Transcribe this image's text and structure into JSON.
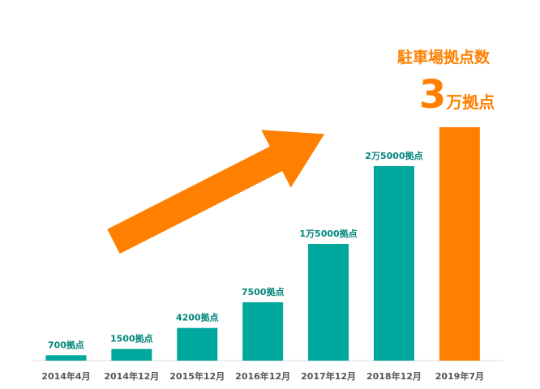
{
  "chart_data": {
    "type": "bar",
    "title": "駐車場拠点数",
    "categories": [
      "2014年4月",
      "2014年12月",
      "2015年12月",
      "2016年12月",
      "2017年12月",
      "2018年12月",
      "2019年7月"
    ],
    "values": [
      700,
      1500,
      4200,
      7500,
      15000,
      25000,
      30000
    ],
    "value_labels": [
      "700拠点",
      "1500拠点",
      "4200拠点",
      "7500拠点",
      "1万5000拠点",
      "2万5000拠点",
      "3万拠点"
    ],
    "colors": [
      "#00a79d",
      "#00a79d",
      "#00a79d",
      "#00a79d",
      "#00a79d",
      "#00a79d",
      "#ff7f00"
    ]
  }
}
